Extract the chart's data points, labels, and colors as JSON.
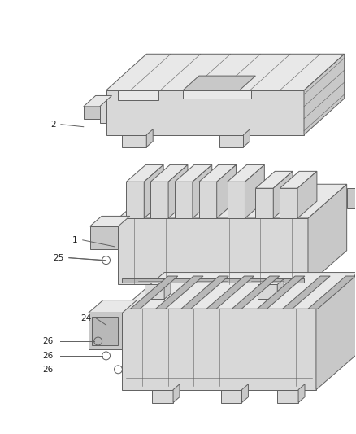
{
  "bg_color": "#ffffff",
  "line_color": "#606060",
  "fig_width": 4.38,
  "fig_height": 5.33,
  "dpi": 100,
  "font_size": 7.5,
  "label_color": "#222222"
}
